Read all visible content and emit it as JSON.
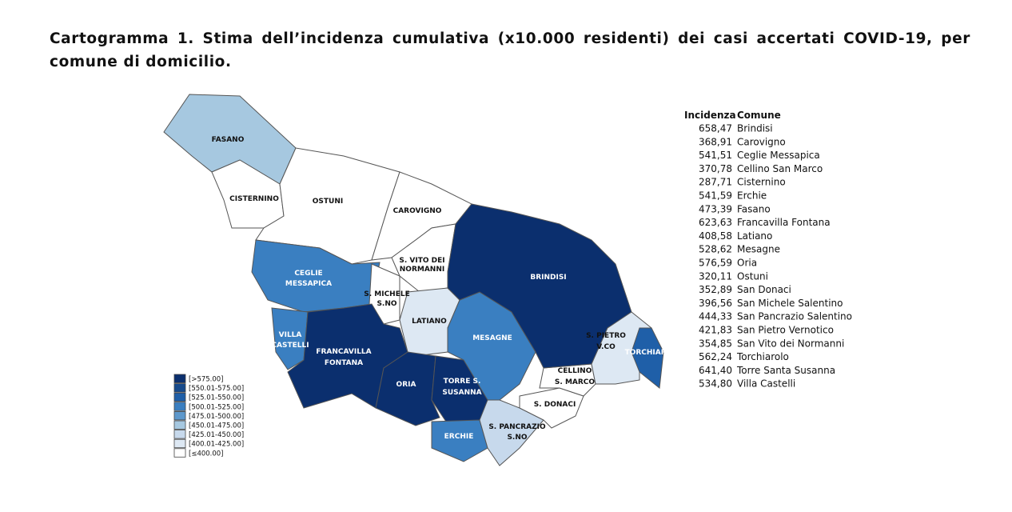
{
  "title": "Cartogramma 1. Stima dell’incidenza cumulativa (x10.000 residenti) dei casi accertati COVID-19, per comune di domicilio.",
  "map": {
    "regions": [
      {
        "lines": [
          "FASANO"
        ]
      },
      {
        "lines": [
          "CISTERNINO"
        ]
      },
      {
        "lines": [
          "OSTUNI"
        ]
      },
      {
        "lines": [
          "CAROVIGNO"
        ]
      },
      {
        "lines": [
          "S. VITO DEI",
          "NORMANNI"
        ]
      },
      {
        "lines": [
          "CEGLIE",
          "MESSAPICA"
        ]
      },
      {
        "lines": [
          "S. MICHELE",
          "S.NO"
        ]
      },
      {
        "lines": [
          "VILLA",
          "CASTELLI"
        ]
      },
      {
        "lines": [
          "FRANCAVILLA",
          "FONTANA"
        ]
      },
      {
        "lines": [
          "LATIANO"
        ]
      },
      {
        "lines": [
          "ORIA"
        ]
      },
      {
        "lines": [
          "TORRE S.",
          "SUSANNA"
        ]
      },
      {
        "lines": [
          "MESAGNE"
        ]
      },
      {
        "lines": [
          "ERCHIE"
        ]
      },
      {
        "lines": [
          "S. PANCRAZIO",
          "S.NO"
        ]
      },
      {
        "lines": [
          "S. DONACI"
        ]
      },
      {
        "lines": [
          "CELLINO",
          "S. MARCO"
        ]
      },
      {
        "lines": [
          "BRINDISI"
        ]
      },
      {
        "lines": [
          "S. PIETRO",
          "V.CO"
        ]
      },
      {
        "lines": [
          "TORCHIAROLO"
        ]
      }
    ]
  },
  "legend": [
    "[>575.00]",
    "[550.01-575.00]",
    "[525.01-550.00]",
    "[500.01-525.00]",
    "[475.01-500.00]",
    "[450.01-475.00]",
    "[425.01-450.00]",
    "[400.01-425.00]",
    "[≤400.00]"
  ],
  "table": {
    "headers": [
      "Incidenza",
      "Comune"
    ],
    "rows": [
      [
        "658,47",
        "Brindisi"
      ],
      [
        "368,91",
        "Carovigno"
      ],
      [
        "541,51",
        "Ceglie Messapica"
      ],
      [
        "370,78",
        "Cellino San Marco"
      ],
      [
        "287,71",
        "Cisternino"
      ],
      [
        "541,59",
        "Erchie"
      ],
      [
        "473,39",
        "Fasano"
      ],
      [
        "623,63",
        "Francavilla Fontana"
      ],
      [
        "408,58",
        "Latiano"
      ],
      [
        "528,62",
        "Mesagne"
      ],
      [
        "576,59",
        "Oria"
      ],
      [
        "320,11",
        "Ostuni"
      ],
      [
        "352,89",
        "San Donaci"
      ],
      [
        "396,56",
        "San Michele Salentino"
      ],
      [
        "444,33",
        "San Pancrazio Salentino"
      ],
      [
        "421,83",
        "San Pietro Vernotico"
      ],
      [
        "354,85",
        "San Vito dei Normanni"
      ],
      [
        "562,24",
        "Torchiarolo"
      ],
      [
        "641,40",
        "Torre Santa Susanna"
      ],
      [
        "534,80",
        "Villa Castelli"
      ]
    ]
  }
}
